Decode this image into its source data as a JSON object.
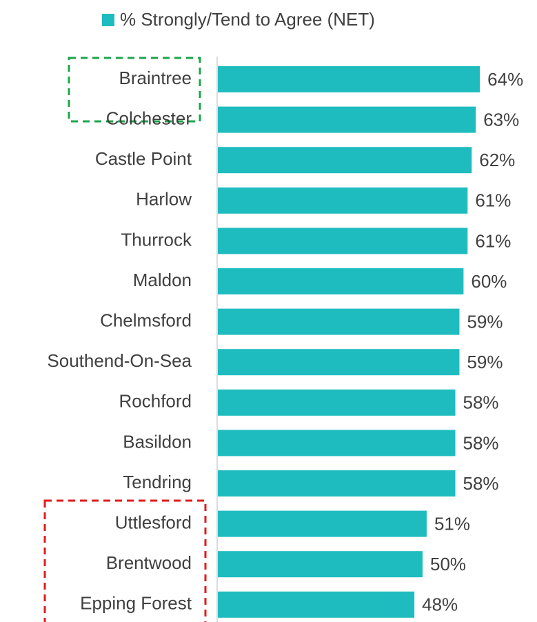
{
  "chart_data": {
    "type": "bar",
    "orientation": "horizontal",
    "categories": [
      "Braintree",
      "Colchester",
      "Castle Point",
      "Harlow",
      "Thurrock",
      "Maldon",
      "Chelmsford",
      "Southend-On-Sea",
      "Rochford",
      "Basildon",
      "Tendring",
      "Uttlesford",
      "Brentwood",
      "Epping Forest"
    ],
    "series": [
      {
        "name": "% Strongly/Tend to Agree (NET)",
        "color": "#1fbcbf",
        "values": [
          64,
          63,
          62,
          61,
          61,
          60,
          59,
          59,
          58,
          58,
          58,
          51,
          50,
          48
        ],
        "value_labels": [
          "64%",
          "63%",
          "62%",
          "61%",
          "61%",
          "60%",
          "59%",
          "59%",
          "58%",
          "58%",
          "58%",
          "51%",
          "50%",
          "48%"
        ]
      }
    ],
    "legend": "top"
  }
}
